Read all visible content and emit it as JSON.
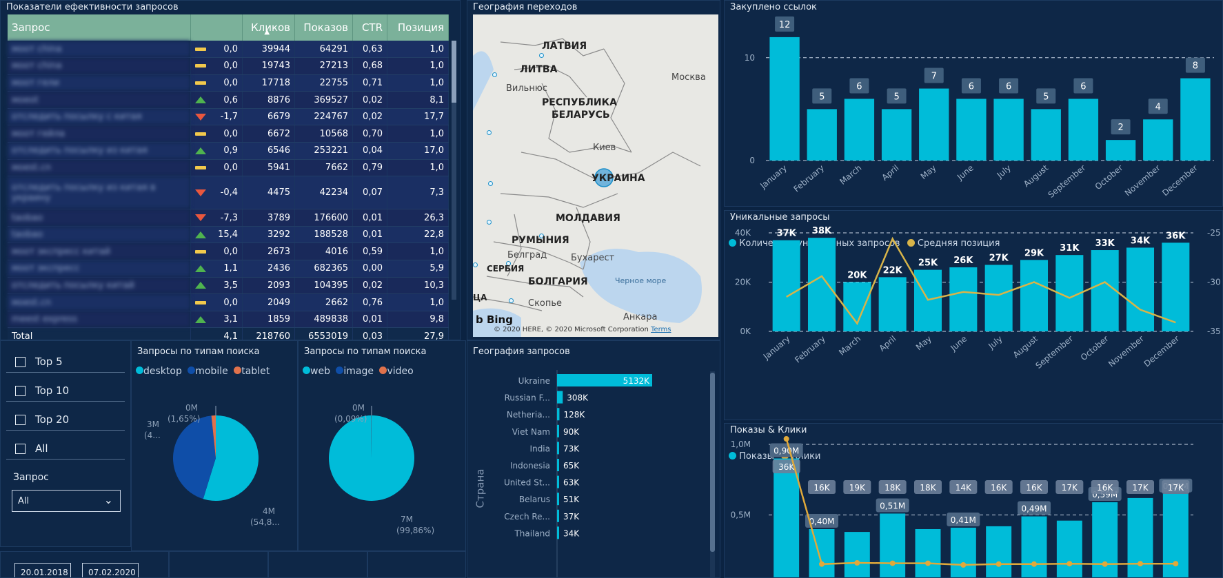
{
  "table_panel": {
    "title": "Показатели ефективности запросов",
    "columns": [
      "Запрос",
      "Кликов",
      "Показов",
      "CTR",
      "Позиция"
    ],
    "rows": [
      {
        "query": "моот china",
        "trend": "flat",
        "delta": "0,0",
        "clicks": "39944",
        "views": "64291",
        "ctr": "0,63",
        "pos": "1,0"
      },
      {
        "query": "моот china",
        "trend": "flat",
        "delta": "0,0",
        "clicks": "19743",
        "views": "27213",
        "ctr": "0,68",
        "pos": "1,0"
      },
      {
        "query": "моот гели",
        "trend": "flat",
        "delta": "0,0",
        "clicks": "17718",
        "views": "22755",
        "ctr": "0,71",
        "pos": "1,0"
      },
      {
        "query": "моеоt",
        "trend": "up",
        "delta": "0,6",
        "clicks": "8876",
        "views": "369527",
        "ctr": "0,02",
        "pos": "8,1"
      },
      {
        "query": "отследить посылку с китая",
        "trend": "down",
        "delta": "-1,7",
        "clicks": "6679",
        "views": "224767",
        "ctr": "0,02",
        "pos": "17,7"
      },
      {
        "query": "моот гейла",
        "trend": "flat",
        "delta": "0,0",
        "clicks": "6672",
        "views": "10568",
        "ctr": "0,70",
        "pos": "1,0"
      },
      {
        "query": "отследить посылку из китая",
        "trend": "up",
        "delta": "0,9",
        "clicks": "6546",
        "views": "253221",
        "ctr": "0,04",
        "pos": "17,0"
      },
      {
        "query": "моеst.cn",
        "trend": "flat",
        "delta": "0,0",
        "clicks": "5941",
        "views": "7662",
        "ctr": "0,79",
        "pos": "1,0"
      },
      {
        "query": "отследить посылку из китая в украину",
        "trend": "down",
        "delta": "-0,4",
        "clicks": "4475",
        "views": "42234",
        "ctr": "0,07",
        "pos": "7,3",
        "tall": true
      },
      {
        "query": "taobao",
        "trend": "down",
        "delta": "-7,3",
        "clicks": "3789",
        "views": "176600",
        "ctr": "0,01",
        "pos": "26,3"
      },
      {
        "query": "taobao",
        "trend": "up",
        "delta": "15,4",
        "clicks": "3292",
        "views": "188528",
        "ctr": "0,01",
        "pos": "22,8"
      },
      {
        "query": "моот экспресс китай",
        "trend": "flat",
        "delta": "0,0",
        "clicks": "2673",
        "views": "4016",
        "ctr": "0,59",
        "pos": "1,0"
      },
      {
        "query": "моот экспресс",
        "trend": "up",
        "delta": "1,1",
        "clicks": "2436",
        "views": "682365",
        "ctr": "0,00",
        "pos": "5,9"
      },
      {
        "query": "отследить посылку китай",
        "trend": "up",
        "delta": "3,5",
        "clicks": "2093",
        "views": "104395",
        "ctr": "0,02",
        "pos": "10,3"
      },
      {
        "query": "моеst.cn",
        "trend": "flat",
        "delta": "0,0",
        "clicks": "2049",
        "views": "2662",
        "ctr": "0,76",
        "pos": "1,0"
      },
      {
        "query": "meest express",
        "trend": "up",
        "delta": "3,1",
        "clicks": "1859",
        "views": "489838",
        "ctr": "0,01",
        "pos": "9,8"
      }
    ],
    "total": {
      "label": "Total",
      "delta": "4,1",
      "clicks": "218760",
      "views": "6553019",
      "ctr": "0,03",
      "pos": "27,9"
    },
    "colors": {
      "header": "#7bb19a",
      "up": "#4fb34f",
      "down": "#e9573e",
      "flat": "#f2c94c"
    }
  },
  "map_panel": {
    "title": "География переходов",
    "labels": {
      "latvia": "ЛАТВИЯ",
      "lithuania": "ЛИТВА",
      "vilnius": "Вильнюс",
      "belarus1": "РЕСПУБЛИКА",
      "belarus2": "БЕЛАРУСЬ",
      "moscow": "Москва",
      "kiev": "Киев",
      "ukraine": "УКРАИНА",
      "moldova": "МОЛДАВИЯ",
      "romania": "РУМЫНИЯ",
      "belgrade": "Белград",
      "bucharest": "Бухарест",
      "serbia": "СЕРБИЯ",
      "bulgaria": "БОЛГАРИЯ",
      "black_sea": "Черное море",
      "skopje": "Скопье",
      "ankara": "Анкара",
      "bing": "Bing",
      "copyright": "© 2020 HERE, © 2020 Microsoft Corporation",
      "terms": "Terms",
      "lca": "ЦА"
    }
  },
  "links_panel": {
    "title": "Закуплено ссылок",
    "chart_data": {
      "type": "bar",
      "categories": [
        "January",
        "February",
        "March",
        "April",
        "May",
        "June",
        "July",
        "August",
        "September",
        "October",
        "November",
        "December"
      ],
      "values": [
        12,
        5,
        6,
        5,
        7,
        6,
        6,
        5,
        6,
        2,
        4,
        8
      ],
      "y_ticks": [
        "0",
        "10"
      ],
      "ylim": [
        0,
        13
      ],
      "grid": true
    }
  },
  "unique_panel": {
    "title": "Уникальные запросы",
    "legend": [
      "Количество уникальных запросов",
      "Средняя позиция"
    ],
    "chart_data": {
      "type": "bar",
      "categories": [
        "January",
        "February",
        "March",
        "April",
        "May",
        "June",
        "July",
        "August",
        "September",
        "October",
        "November",
        "December"
      ],
      "series": [
        {
          "name": "Количество уникальных запросов",
          "values": [
            37000,
            38000,
            20000,
            22000,
            25000,
            26000,
            27000,
            29000,
            31000,
            33000,
            34000,
            36000
          ],
          "labels": [
            "37K",
            "38K",
            "20K",
            "22K",
            "25K",
            "26K",
            "27K",
            "29K",
            "31K",
            "33K",
            "34K",
            "36K"
          ],
          "color": "#00bcd9"
        },
        {
          "name": "Средняя позиция",
          "type": "line",
          "values": [
            -31.5,
            -29.4,
            -34.2,
            -25.6,
            -31.8,
            -31.0,
            -31.3,
            -30.0,
            -31.6,
            -30.0,
            -32.8,
            -34.1
          ],
          "color": "#d8b449"
        }
      ],
      "y_ticks": [
        "0K",
        "20K",
        "40K"
      ],
      "ylim": [
        0,
        40000
      ],
      "y2_ticks": [
        "-25",
        "-30",
        "-35"
      ],
      "y2lim": [
        -35,
        -25
      ]
    }
  },
  "views_panel": {
    "title": "Показы & Клики",
    "legend": [
      "Показы",
      "Клики"
    ],
    "chart_data": {
      "type": "bar",
      "categories": [
        "January",
        "February",
        "March",
        "April",
        "May",
        "June",
        "July",
        "August",
        "September",
        "October",
        "November",
        "December"
      ],
      "series": [
        {
          "name": "Показы",
          "values": [
            0.9,
            0.4,
            0.38,
            0.51,
            0.4,
            0.41,
            0.42,
            0.49,
            0.46,
            0.59,
            0.62,
            0.65
          ],
          "labels": [
            "0,90M",
            "0,40M",
            "",
            "0,51M",
            "",
            "0,41M",
            "",
            "0,49M",
            "",
            "0,59M",
            "",
            "0,65M"
          ],
          "color": "#00bcd9"
        },
        {
          "name": "Клики",
          "values": [
            36,
            16,
            19,
            18,
            18,
            14,
            16,
            16,
            17,
            16,
            17,
            17
          ],
          "labels": [
            "36K",
            "16K",
            "19K",
            "18K",
            "18K",
            "14K",
            "16K",
            "16K",
            "17K",
            "16K",
            "17K",
            "17K"
          ],
          "color": "#e0a93a"
        }
      ],
      "y_ticks": [
        "0,5M",
        "1,0M"
      ],
      "ylim": [
        0,
        1.0
      ]
    }
  },
  "checkboxes": [
    "Top 5",
    "Top 10",
    "Top 20",
    "All"
  ],
  "query_filter": {
    "label": "Запрос",
    "value": "All"
  },
  "search_types_device": {
    "title": "Запросы по типам поиска",
    "legend": [
      "desktop",
      "mobile",
      "tablet"
    ],
    "chart_data": {
      "type": "pie",
      "categories": [
        "desktop",
        "mobile",
        "tablet"
      ],
      "values": [
        54.8,
        43.6,
        1.65
      ],
      "colors": [
        "#00bcd9",
        "#0f4ea8",
        "#e0724c"
      ]
    },
    "labels": {
      "top": "0M",
      "top2": "(1,65%)",
      "left": "3M",
      "left2": "(4...",
      "right": "4M",
      "right2": "(54,8..."
    }
  },
  "search_types_kind": {
    "title": "Запросы по типам поиска",
    "legend": [
      "web",
      "image",
      "video"
    ],
    "chart_data": {
      "type": "pie",
      "categories": [
        "web",
        "image",
        "video"
      ],
      "values": [
        99.86,
        0.09,
        0.05
      ],
      "colors": [
        "#00bcd9",
        "#0f4ea8",
        "#e0724c"
      ]
    },
    "labels": {
      "top": "0M",
      "top2": "(0,09%)",
      "right": "7M",
      "right2": "(99,86%)"
    }
  },
  "geo_queries": {
    "title": "География запросов",
    "axis_label": "Страна",
    "chart_data": {
      "type": "bar",
      "orientation": "horizontal",
      "categories": [
        "Ukraine",
        "Russian F...",
        "Netheria...",
        "Viet Nam",
        "India",
        "Indonesia",
        "United St...",
        "Belarus",
        "Czech Re...",
        "Thailand"
      ],
      "values": [
        5132,
        308,
        128,
        90,
        73,
        65,
        63,
        51,
        37,
        34
      ],
      "labels": [
        "5132K",
        "308K",
        "128K",
        "90K",
        "73K",
        "65K",
        "63K",
        "51K",
        "37K",
        "34K"
      ]
    }
  },
  "dates": {
    "from": "20.01.2018",
    "to": "07.02.2020"
  }
}
